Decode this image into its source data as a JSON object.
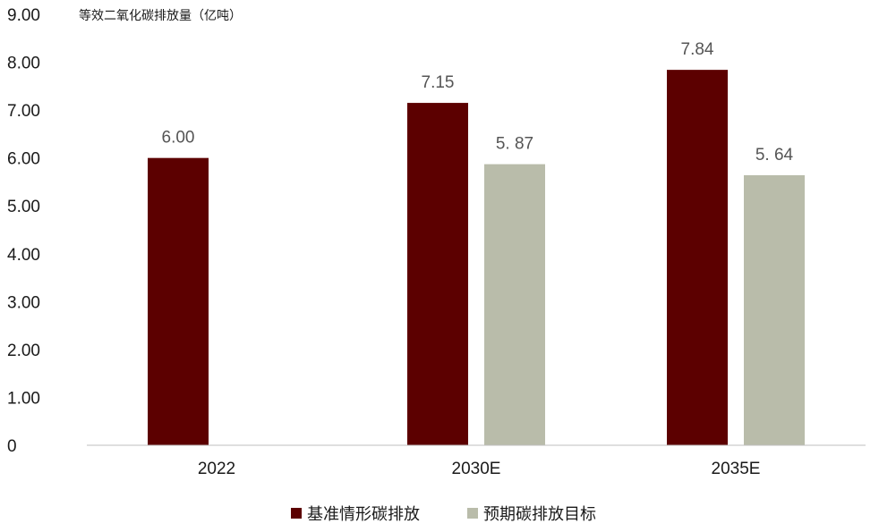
{
  "chart_data": {
    "type": "bar",
    "ylabel": "等效二氧化碳排放量（亿吨）",
    "ylim": [
      0,
      9
    ],
    "yticks": [
      "0",
      "1.00",
      "2.00",
      "3.00",
      "4.00",
      "5.00",
      "6.00",
      "7.00",
      "8.00",
      "9.00"
    ],
    "categories": [
      "2022",
      "2030E",
      "2035E"
    ],
    "series": [
      {
        "name": "基准情形碳排放",
        "color": "#5c0000",
        "values": [
          6.0,
          7.15,
          7.84
        ],
        "labels": [
          "6.00",
          "7.15",
          "7.84"
        ]
      },
      {
        "name": "预期碳排放目标",
        "color": "#b9bcaa",
        "values": [
          null,
          5.87,
          5.64
        ],
        "labels": [
          "",
          "5. 87",
          "5. 64"
        ]
      }
    ],
    "grid": false,
    "legend": "bottom"
  }
}
